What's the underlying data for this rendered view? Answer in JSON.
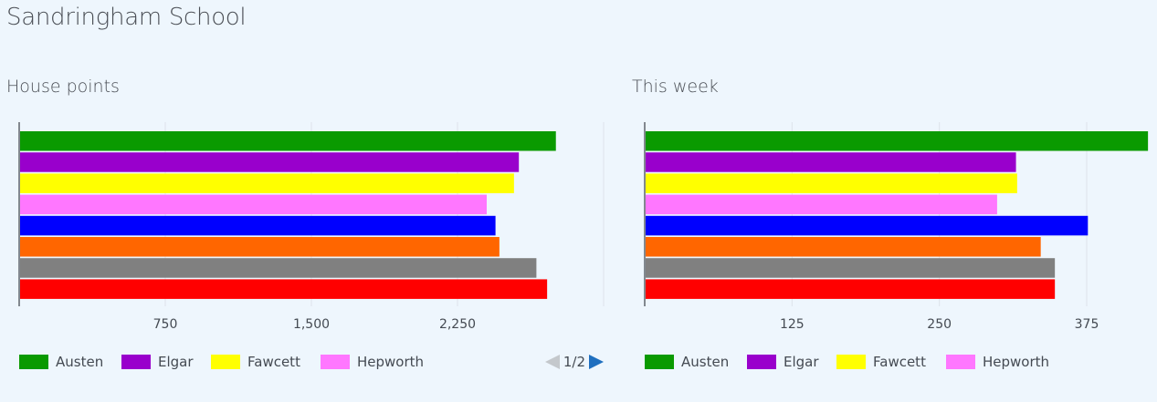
{
  "app": {
    "title": "Sandringham School"
  },
  "charts": [
    {
      "title": "House points",
      "pager": {
        "text": "1/2"
      }
    },
    {
      "title": "This week"
    }
  ],
  "chart_data": [
    {
      "type": "bar",
      "orientation": "horizontal",
      "title": "House points",
      "categories": [
        "Austen",
        "Elgar",
        "Fawcett",
        "Hepworth",
        "",
        "",
        "",
        ""
      ],
      "series": [
        {
          "values": [
            2755,
            2565,
            2540,
            2400,
            2445,
            2465,
            2655,
            2710
          ],
          "colors": [
            "#0a9a00",
            "#9900cc",
            "#ffff00",
            "#ff77ff",
            "#0000ff",
            "#ff6600",
            "#808080",
            "#ff0000"
          ]
        }
      ],
      "xlim": [
        0,
        3000
      ],
      "xticks": [
        "750",
        "1,500",
        "2,250"
      ],
      "grid": true,
      "legend": {
        "placement": "bottom",
        "entries": [
          {
            "label": "Austen",
            "color": "#0a9a00"
          },
          {
            "label": "Elgar",
            "color": "#9900cc"
          },
          {
            "label": "Fawcett",
            "color": "#ffff00"
          },
          {
            "label": "Hepworth",
            "color": "#ff77ff"
          }
        ]
      }
    },
    {
      "type": "bar",
      "orientation": "horizontal",
      "title": "This week",
      "categories": [
        "Austen",
        "Elgar",
        "Fawcett",
        "Hepworth",
        "",
        "",
        "",
        ""
      ],
      "series": [
        {
          "values": [
            427,
            315,
            316,
            299,
            376,
            336,
            348,
            348
          ],
          "colors": [
            "#0a9a00",
            "#9900cc",
            "#ffff00",
            "#ff77ff",
            "#0000ff",
            "#ff6600",
            "#808080",
            "#ff0000"
          ]
        }
      ],
      "xlim": [
        0,
        430
      ],
      "xticks": [
        "125",
        "250",
        "375"
      ],
      "grid": true,
      "legend": {
        "placement": "bottom",
        "entries": [
          {
            "label": "Austen",
            "color": "#0a9a00"
          },
          {
            "label": "Elgar",
            "color": "#9900cc"
          },
          {
            "label": "Fawcett",
            "color": "#ffff00"
          },
          {
            "label": "Hepworth",
            "color": "#ff77ff"
          }
        ]
      }
    }
  ]
}
